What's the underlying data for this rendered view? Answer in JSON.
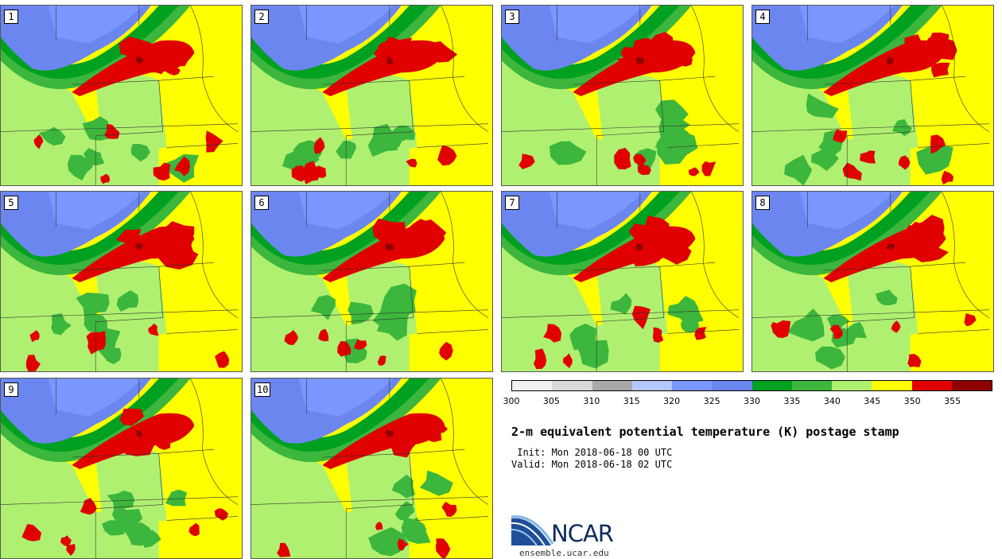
{
  "stamps": [
    {
      "label": "1"
    },
    {
      "label": "2"
    },
    {
      "label": "3"
    },
    {
      "label": "4"
    },
    {
      "label": "5"
    },
    {
      "label": "6"
    },
    {
      "label": "7"
    },
    {
      "label": "8"
    },
    {
      "label": "9"
    },
    {
      "label": "10"
    }
  ],
  "colorbar": {
    "colors": [
      "#f0f0f0",
      "#d8d8d8",
      "#a8a8a8",
      "#b4c8ff",
      "#7a96ff",
      "#6c86f0",
      "#00a020",
      "#3cb63c",
      "#b0f070",
      "#ffff00",
      "#e00000",
      "#900000"
    ],
    "ticks": [
      "300",
      "305",
      "310",
      "315",
      "320",
      "325",
      "330",
      "335",
      "340",
      "345",
      "350",
      "355"
    ]
  },
  "title": "2-m equivalent potential temperature (K) postage stamp",
  "init_line": " Init: Mon 2018-06-18 00 UTC",
  "valid_line": "Valid: Mon 2018-06-18 02 UTC",
  "logo": {
    "text": "NCAR",
    "site": "ensemble.ucar.edu"
  }
}
